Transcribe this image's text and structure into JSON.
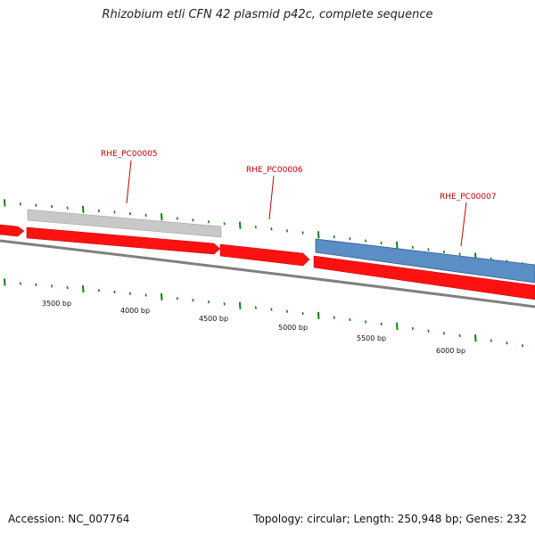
{
  "title": "Rhizobium etli CFN 42 plasmid p42c, complete sequence",
  "footer": {
    "accession": "Accession: NC_007764",
    "summary": "Topology: circular; Length: 250,948 bp; Genes: 232"
  },
  "colors": {
    "gene_fill": "#ff1111",
    "gene_highlight": "#c0c0c0",
    "gene_blue": "#5a8ec4",
    "backbone": "#777777",
    "tick": "#108010",
    "label": "#c00000"
  },
  "genes": [
    {
      "name": "RHE_PC00005",
      "color": "gray"
    },
    {
      "name": "RHE_PC00006",
      "color": "red"
    },
    {
      "name": "RHE_PC00007",
      "color": "blue"
    }
  ],
  "scale_labels": [
    "3500 bp",
    "4000 bp",
    "4500 bp",
    "5000 bp",
    "5500 bp",
    "6000 bp"
  ]
}
